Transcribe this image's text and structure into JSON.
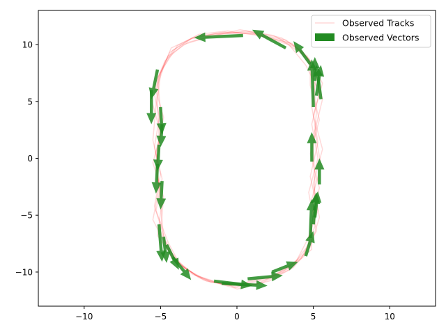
{
  "chart_data": {
    "type": "scatter",
    "title": "",
    "xlabel": "",
    "ylabel": "",
    "xlim": [
      -13,
      13
    ],
    "ylim": [
      -13,
      13
    ],
    "x_ticks": [
      -10,
      -5,
      0,
      5,
      10
    ],
    "y_ticks": [
      -10,
      -5,
      0,
      5,
      10
    ],
    "grid": false,
    "legend_position": "upper right",
    "colors": {
      "tracks": "#ff0000",
      "vectors": "#228b22"
    },
    "series": [
      {
        "name": "Observed Tracks",
        "kind": "line",
        "alpha": 0.15,
        "tracks": [
          [
            [
              0.2,
              -11.2
            ],
            [
              2.0,
              -10.6
            ],
            [
              3.6,
              -9.5
            ],
            [
              4.7,
              -7.6
            ],
            [
              5.0,
              -5.0
            ],
            [
              5.1,
              -2.0
            ],
            [
              5.0,
              1.0
            ],
            [
              5.2,
              4.0
            ],
            [
              5.0,
              7.0
            ],
            [
              4.6,
              9.0
            ],
            [
              3.2,
              10.4
            ],
            [
              1.0,
              11.0
            ],
            [
              -1.0,
              11.0
            ],
            [
              -2.9,
              10.6
            ],
            [
              -4.2,
              9.5
            ],
            [
              -5.0,
              7.5
            ],
            [
              -5.2,
              5.0
            ],
            [
              -5.1,
              2.0
            ],
            [
              -5.2,
              -1.0
            ],
            [
              -5.0,
              -4.0
            ],
            [
              -4.8,
              -7.0
            ],
            [
              -4.0,
              -9.0
            ],
            [
              -2.5,
              -10.5
            ],
            [
              -0.8,
              -11.1
            ],
            [
              0.2,
              -11.2
            ]
          ],
          [
            [
              0.5,
              -11.0
            ],
            [
              2.3,
              -10.4
            ],
            [
              3.9,
              -9.0
            ],
            [
              4.6,
              -7.2
            ],
            [
              5.3,
              -4.6
            ],
            [
              4.8,
              -1.6
            ],
            [
              5.3,
              1.4
            ],
            [
              4.9,
              4.5
            ],
            [
              5.2,
              7.3
            ],
            [
              4.3,
              9.4
            ],
            [
              2.9,
              10.6
            ],
            [
              0.6,
              11.2
            ],
            [
              -1.5,
              10.8
            ],
            [
              -3.2,
              10.2
            ],
            [
              -4.5,
              9.0
            ],
            [
              -5.2,
              7.0
            ],
            [
              -5.0,
              4.2
            ],
            [
              -5.4,
              1.0
            ],
            [
              -4.9,
              -1.8
            ],
            [
              -5.3,
              -4.6
            ],
            [
              -4.5,
              -7.4
            ],
            [
              -3.7,
              -9.4
            ],
            [
              -2.0,
              -10.8
            ],
            [
              0.0,
              -11.3
            ],
            [
              0.5,
              -11.0
            ]
          ],
          [
            [
              -0.2,
              -11.4
            ],
            [
              1.7,
              -10.9
            ],
            [
              3.4,
              -9.8
            ],
            [
              4.9,
              -8.0
            ],
            [
              4.8,
              -5.4
            ],
            [
              5.4,
              -2.6
            ],
            [
              4.8,
              0.4
            ],
            [
              5.4,
              3.4
            ],
            [
              4.8,
              6.4
            ],
            [
              4.8,
              8.6
            ],
            [
              3.6,
              10.1
            ],
            [
              1.4,
              10.8
            ],
            [
              -0.6,
              11.2
            ],
            [
              -2.5,
              10.9
            ],
            [
              -3.9,
              9.9
            ],
            [
              -4.8,
              8.0
            ],
            [
              -5.4,
              5.6
            ],
            [
              -4.9,
              2.6
            ],
            [
              -5.5,
              -0.4
            ],
            [
              -4.8,
              -3.4
            ],
            [
              -5.0,
              -6.4
            ],
            [
              -4.3,
              -8.7
            ],
            [
              -2.9,
              -10.2
            ],
            [
              -1.2,
              -11.0
            ],
            [
              -0.2,
              -11.4
            ]
          ],
          [
            [
              0.8,
              -10.8
            ],
            [
              2.6,
              -10.2
            ],
            [
              4.2,
              -8.8
            ],
            [
              5.2,
              -6.4
            ],
            [
              4.9,
              -3.6
            ],
            [
              5.5,
              -0.6
            ],
            [
              5.1,
              2.4
            ],
            [
              5.6,
              5.2
            ],
            [
              5.1,
              7.6
            ],
            [
              4.0,
              9.6
            ],
            [
              2.4,
              10.8
            ],
            [
              0.2,
              11.3
            ],
            [
              -1.8,
              10.7
            ],
            [
              -3.5,
              10.0
            ],
            [
              -4.7,
              8.6
            ],
            [
              -5.4,
              6.4
            ],
            [
              -4.8,
              3.6
            ],
            [
              -5.3,
              0.4
            ],
            [
              -5.1,
              -2.6
            ],
            [
              -5.5,
              -5.4
            ],
            [
              -4.6,
              -7.8
            ],
            [
              -3.4,
              -9.7
            ],
            [
              -1.7,
              -10.9
            ],
            [
              0.4,
              -11.1
            ],
            [
              0.8,
              -10.8
            ]
          ],
          [
            [
              -0.5,
              -11.1
            ],
            [
              1.2,
              -11.1
            ],
            [
              3.0,
              -10.0
            ],
            [
              4.4,
              -8.4
            ],
            [
              5.1,
              -6.0
            ],
            [
              4.7,
              -3.0
            ],
            [
              5.3,
              0.0
            ],
            [
              4.9,
              3.0
            ],
            [
              5.4,
              5.8
            ],
            [
              4.5,
              8.2
            ],
            [
              3.4,
              10.0
            ],
            [
              1.2,
              10.9
            ],
            [
              -0.8,
              11.1
            ],
            [
              -2.7,
              10.7
            ],
            [
              -4.3,
              9.7
            ],
            [
              -4.9,
              7.8
            ],
            [
              -5.6,
              5.2
            ],
            [
              -5.0,
              2.2
            ],
            [
              -5.3,
              -0.8
            ],
            [
              -4.9,
              -3.8
            ],
            [
              -5.2,
              -6.8
            ],
            [
              -4.1,
              -8.8
            ],
            [
              -2.7,
              -10.3
            ],
            [
              -1.0,
              -11.0
            ],
            [
              -0.5,
              -11.1
            ]
          ],
          [
            [
              0.0,
              -11.5
            ],
            [
              2.1,
              -10.8
            ],
            [
              3.7,
              -9.6
            ],
            [
              4.8,
              -7.8
            ],
            [
              5.4,
              -5.2
            ],
            [
              5.0,
              -2.2
            ],
            [
              5.6,
              0.8
            ],
            [
              5.0,
              3.8
            ],
            [
              5.6,
              6.6
            ],
            [
              4.7,
              8.8
            ],
            [
              3.0,
              10.3
            ],
            [
              0.8,
              11.1
            ],
            [
              -1.3,
              11.0
            ],
            [
              -3.0,
              10.5
            ],
            [
              -4.4,
              9.3
            ],
            [
              -5.1,
              7.2
            ],
            [
              -5.3,
              4.6
            ],
            [
              -5.5,
              1.6
            ],
            [
              -5.0,
              -1.4
            ],
            [
              -5.4,
              -4.2
            ],
            [
              -4.7,
              -7.2
            ],
            [
              -3.9,
              -9.2
            ],
            [
              -2.2,
              -10.7
            ],
            [
              -0.4,
              -11.2
            ],
            [
              0.0,
              -11.5
            ]
          ]
        ]
      },
      {
        "name": "Observed Vectors",
        "kind": "quiver",
        "arrows": [
          {
            "x": 0.4,
            "y": 10.8,
            "u": -3.2,
            "v": -0.2
          },
          {
            "x": 3.2,
            "y": 9.7,
            "u": -2.2,
            "v": 1.6
          },
          {
            "x": 4.8,
            "y": 8.3,
            "u": -1.1,
            "v": 2.0
          },
          {
            "x": 5.1,
            "y": 6.8,
            "u": 0.0,
            "v": 2.1
          },
          {
            "x": 5.2,
            "y": 5.5,
            "u": 0.3,
            "v": 2.7
          },
          {
            "x": 5.5,
            "y": 5.2,
            "u": -0.3,
            "v": 3.0
          },
          {
            "x": 5.0,
            "y": 4.5,
            "u": -0.1,
            "v": 4.2
          },
          {
            "x": -5.2,
            "y": 7.8,
            "u": -0.4,
            "v": -2.6
          },
          {
            "x": -5.6,
            "y": 6.0,
            "u": 0.0,
            "v": -3.0
          },
          {
            "x": -5.0,
            "y": 4.5,
            "u": 0.1,
            "v": -2.4
          },
          {
            "x": -4.9,
            "y": 3.0,
            "u": -0.1,
            "v": -2.0
          },
          {
            "x": -5.1,
            "y": 1.2,
            "u": -0.1,
            "v": -2.3
          },
          {
            "x": -5.2,
            "y": -0.5,
            "u": -0.1,
            "v": -2.6
          },
          {
            "x": -4.9,
            "y": -2.0,
            "u": -0.1,
            "v": -2.5
          },
          {
            "x": -5.1,
            "y": -5.8,
            "u": 0.2,
            "v": -3.3
          },
          {
            "x": -4.8,
            "y": -6.9,
            "u": 0.2,
            "v": -2.3
          },
          {
            "x": -4.6,
            "y": -7.6,
            "u": 0.8,
            "v": -2.2
          },
          {
            "x": -4.2,
            "y": -8.7,
            "u": 1.2,
            "v": -2.0
          },
          {
            "x": -1.5,
            "y": -10.8,
            "u": 2.5,
            "v": -0.4
          },
          {
            "x": -1.0,
            "y": -11.0,
            "u": 3.0,
            "v": -0.2
          },
          {
            "x": 0.7,
            "y": -10.6,
            "u": 2.3,
            "v": 0.3
          },
          {
            "x": 2.3,
            "y": -10.0,
            "u": 1.7,
            "v": 0.9
          },
          {
            "x": 4.5,
            "y": -8.6,
            "u": 0.5,
            "v": 2.2
          },
          {
            "x": 4.8,
            "y": -7.0,
            "u": 0.1,
            "v": 3.4
          },
          {
            "x": 5.0,
            "y": -5.8,
            "u": 0.2,
            "v": 2.8
          },
          {
            "x": 5.1,
            "y": -5.2,
            "u": 0.2,
            "v": 2.3
          },
          {
            "x": 5.4,
            "y": -2.3,
            "u": 0.0,
            "v": 2.3
          },
          {
            "x": 4.9,
            "y": -0.3,
            "u": 0.0,
            "v": 2.6
          }
        ]
      }
    ],
    "legend": {
      "tracks_label": "Observed Tracks",
      "vectors_label": "Observed Vectors"
    }
  }
}
